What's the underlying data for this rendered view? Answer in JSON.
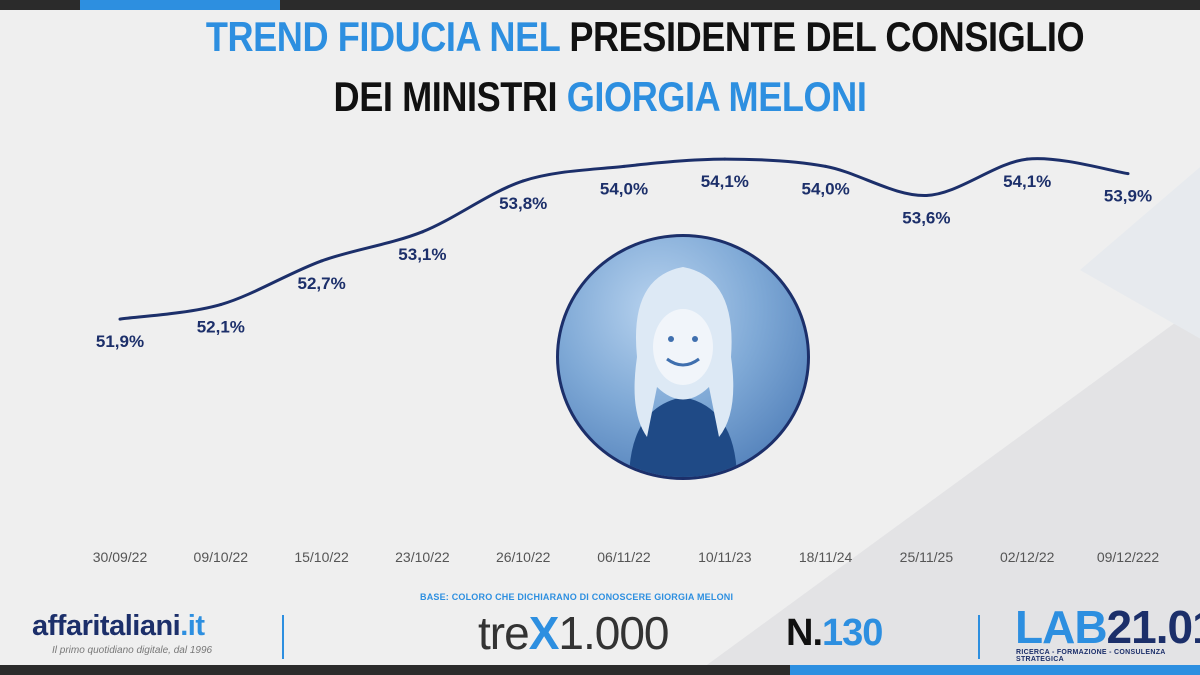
{
  "title": {
    "line1_blue": "TREND FIDUCIA NEL",
    "line1_black": "PRESIDENTE DEL CONSIGLIO",
    "line2_black": "DEI MINISTRI",
    "line2_blue": "GIORGIA MELONI"
  },
  "chart_data": {
    "type": "line",
    "title": "TREND FIDUCIA NEL PRESIDENTE DEL CONSIGLIO DEI MINISTRI GIORGIA MELONI",
    "categories": [
      "30/09/22",
      "09/10/22",
      "15/10/22",
      "23/10/22",
      "26/10/22",
      "06/11/22",
      "10/11/23",
      "18/11/24",
      "25/11/25",
      "02/12/22",
      "09/12/222"
    ],
    "values": [
      51.9,
      52.1,
      52.7,
      53.1,
      53.8,
      54.0,
      54.1,
      54.0,
      53.6,
      54.1,
      53.9
    ],
    "value_labels": [
      "51,9%",
      "52,1%",
      "52,7%",
      "53,1%",
      "53,8%",
      "54,0%",
      "54,1%",
      "54,0%",
      "53,6%",
      "54,1%",
      "53,9%"
    ],
    "ylim": [
      49.0,
      54.5
    ],
    "grid": false,
    "legend": "none",
    "line_color": "#1c2f6a"
  },
  "base_note": "BASE: COLORO CHE DICHIARANO DI CONOSCERE GIORGIA MELONI",
  "footer": {
    "brand_main": "affaritaliani",
    "brand_tld": ".it",
    "tagline": "Il primo quotidiano digitale, dal 1996",
    "trex_pre": "tre",
    "trex_x": "X",
    "trex_post": "1.000",
    "issue_prefix": "N.",
    "issue_number": "130",
    "lab_prefix": "LAB",
    "lab_number": "21.01",
    "lab_subtitle": "RICERCA - FORMAZIONE - CONSULENZA STRATEGICA"
  },
  "colors": {
    "accent": "#2d8fe0",
    "navy": "#1c2f6a",
    "dark": "#2b2b2b"
  }
}
